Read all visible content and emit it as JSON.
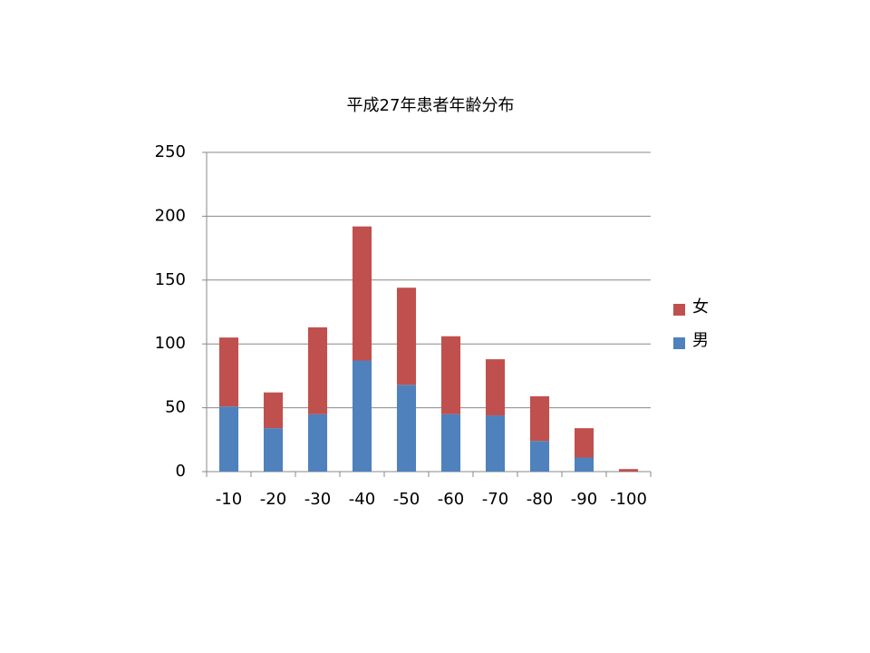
{
  "chart_data": {
    "type": "stacked_bar",
    "title": "平成27年患者年齢分布",
    "categories": [
      "-10",
      "-20",
      "-30",
      "-40",
      "-50",
      "-60",
      "-70",
      "-80",
      "-90",
      "-100"
    ],
    "series": [
      {
        "name": "男",
        "color": "#4f81bd",
        "values": [
          51,
          34,
          45,
          87,
          68,
          45,
          44,
          24,
          11,
          0
        ]
      },
      {
        "name": "女",
        "color": "#c0504d",
        "values": [
          54,
          28,
          68,
          105,
          76,
          61,
          44,
          35,
          23,
          2
        ]
      }
    ],
    "ylim": [
      0,
      250
    ],
    "yticks": [
      0,
      50,
      100,
      150,
      200,
      250
    ],
    "grid": true,
    "legend": "right"
  }
}
